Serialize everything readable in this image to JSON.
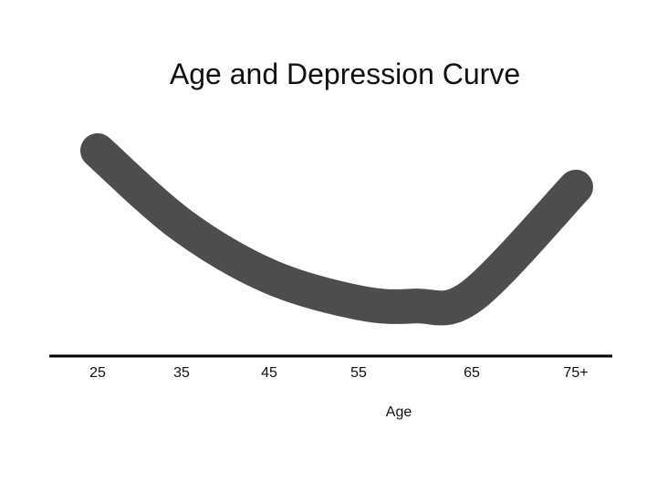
{
  "chart_data": {
    "type": "line",
    "title": "Age and Depression Curve",
    "xlabel": "Age",
    "ylabel": "",
    "x_ticks": [
      "25",
      "35",
      "45",
      "55",
      "65",
      "75+"
    ],
    "series": [
      {
        "x": [
          25,
          35,
          45,
          55,
          60,
          65,
          75
        ],
        "values": [
          1.0,
          0.55,
          0.24,
          0.08,
          0.06,
          0.12,
          0.78
        ]
      }
    ],
    "ylim": [
      0,
      1
    ],
    "y_axis_visible": false,
    "grid": false,
    "legend": "none",
    "line_color": "#4d4d4d"
  }
}
